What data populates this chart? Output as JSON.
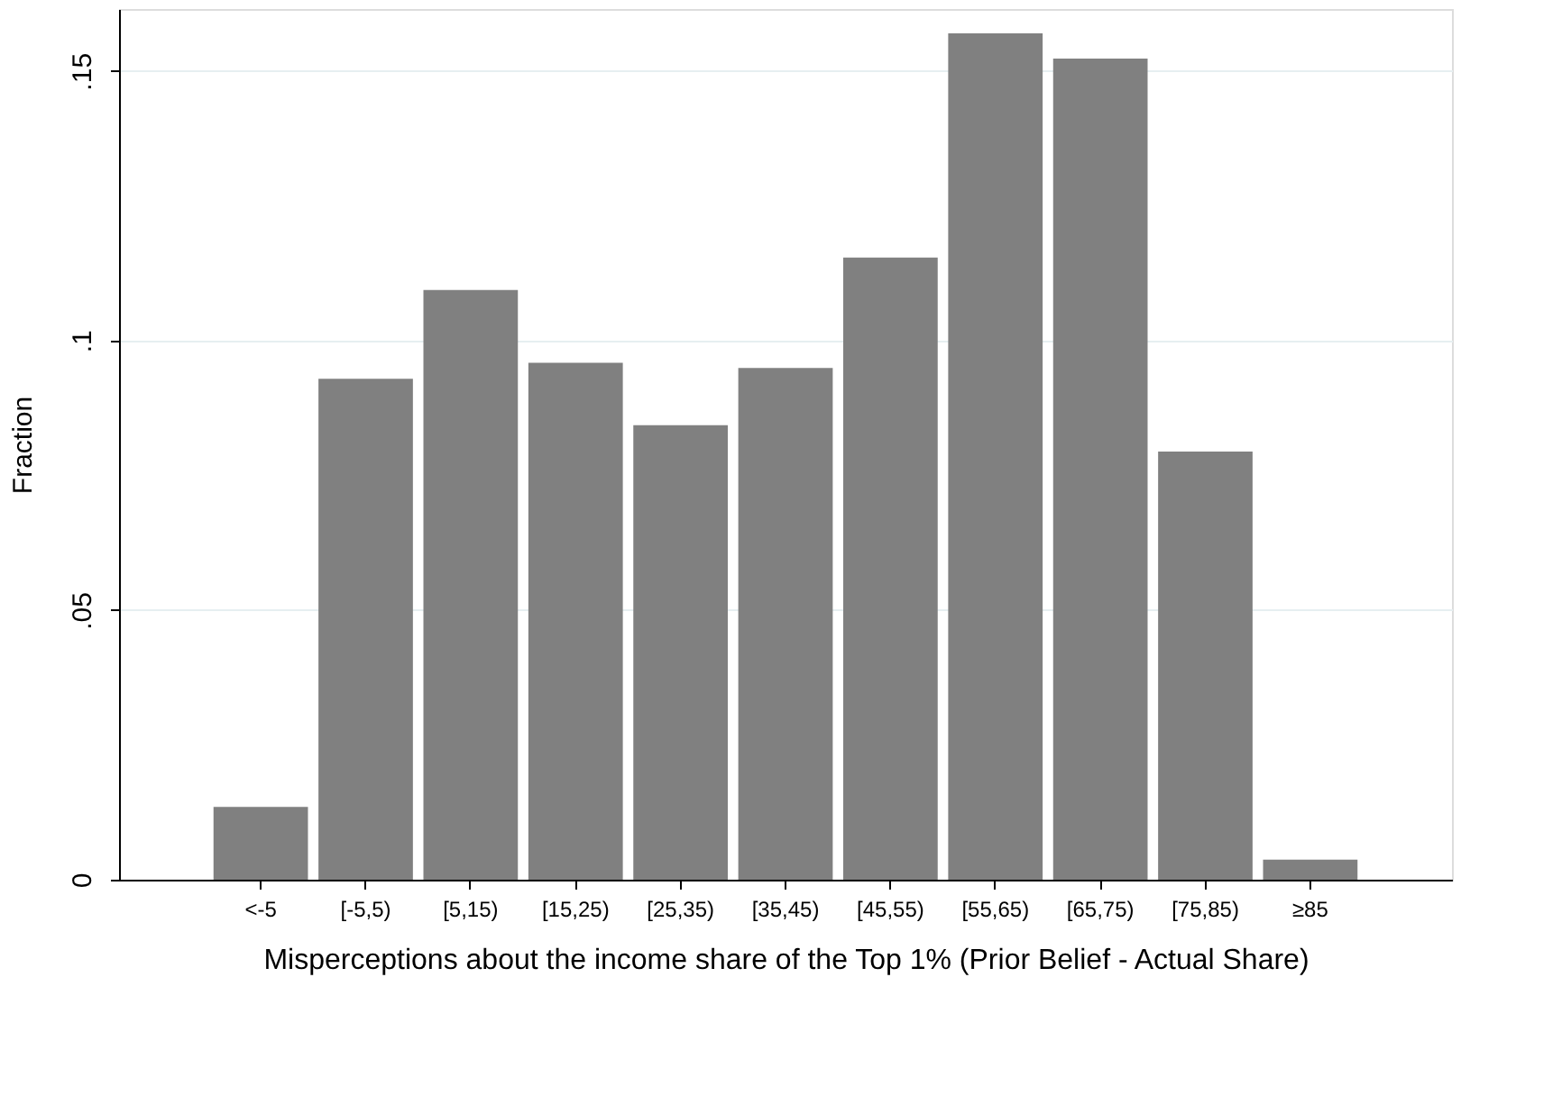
{
  "chart_data": {
    "type": "bar",
    "xlabel": "Misperceptions about the income share of the Top 1% (Prior Belief - Actual Share)",
    "ylabel": "Fraction",
    "categories": [
      "<-5",
      "[-5,5)",
      "[5,15)",
      "[15,25)",
      "[25,35)",
      "[35,45)",
      "[45,55)",
      "[55,65)",
      "[65,75)",
      "[75,85)",
      "≥85"
    ],
    "values": [
      0.0135,
      0.0929,
      0.1094,
      0.0959,
      0.0843,
      0.0949,
      0.1154,
      0.157,
      0.1523,
      0.0794,
      0.0037
    ],
    "color": "#808080",
    "ylim": [
      0,
      0.1615
    ],
    "yticks": [
      0,
      {
        "value": 0.05,
        "label": ".05"
      },
      {
        "value": 0.1,
        "label": ".1"
      },
      {
        "value": 0.15,
        "label": ".15"
      }
    ],
    "grid": "y"
  }
}
